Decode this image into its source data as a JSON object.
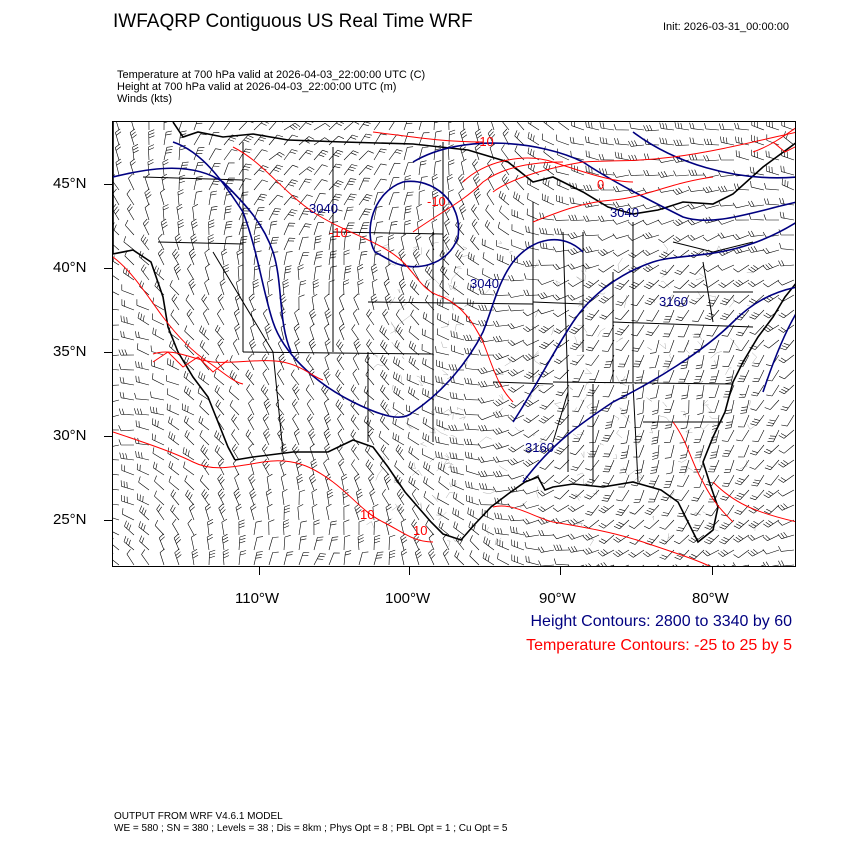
{
  "header": {
    "title": "IWFAQRP Contiguous US Real Time WRF",
    "init": "Init: 2026-03-31_00:00:00"
  },
  "fields": {
    "temperature": "Temperature at 700 hPa valid at 2026-04-03_22:00:00 UTC   (C)",
    "height": "Height at 700 hPa valid at 2026-04-03_22:00:00 UTC   (m)",
    "winds": "Winds   (kts)"
  },
  "axes": {
    "lat_labels": [
      "45°N",
      "40°N",
      "35°N",
      "30°N",
      "25°N"
    ],
    "lon_labels": [
      "110°W",
      "100°W",
      "90°W",
      "80°W"
    ]
  },
  "contour_labels": {
    "height": [
      "3040",
      "3040",
      "3040",
      "3160",
      "3160"
    ],
    "temperature": [
      "-10",
      "-10",
      "-10",
      "0",
      "10",
      "10"
    ]
  },
  "legend": {
    "height": "Height Contours: 2800 to 3340 by 60",
    "temperature": "Temperature Contours: -25 to 25 by 5",
    "height_color": "#000080",
    "temperature_color": "#ff0000"
  },
  "footer": {
    "line1": "OUTPUT FROM WRF V4.6.1 MODEL",
    "line2": "WE = 580 ; SN = 380 ; Levels = 38 ; Dis = 8km ; Phys Opt = 8 ; PBL Opt = 1 ; Cu Opt = 5"
  }
}
